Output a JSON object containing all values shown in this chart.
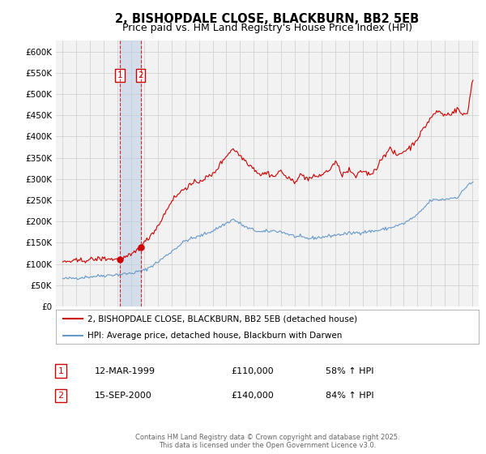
{
  "title": "2, BISHOPDALE CLOSE, BLACKBURN, BB2 5EB",
  "subtitle": "Price paid vs. HM Land Registry's House Price Index (HPI)",
  "title_fontsize": 10.5,
  "subtitle_fontsize": 9,
  "background_color": "#ffffff",
  "grid_color": "#cccccc",
  "plot_bg_color": "#f2f2f2",
  "legend1_label": "2, BISHOPDALE CLOSE, BLACKBURN, BB2 5EB (detached house)",
  "legend2_label": "HPI: Average price, detached house, Blackburn with Darwen",
  "line1_color": "#cc0000",
  "line2_color": "#6699cc",
  "marker_color": "#cc0000",
  "sale1_date_num": 1999.19,
  "sale2_date_num": 2000.71,
  "sale1_price": 110000,
  "sale2_price": 140000,
  "sale1_label": "1",
  "sale2_label": "2",
  "table_row1": [
    "1",
    "12-MAR-1999",
    "£110,000",
    "58% ↑ HPI"
  ],
  "table_row2": [
    "2",
    "15-SEP-2000",
    "£140,000",
    "84% ↑ HPI"
  ],
  "footer": "Contains HM Land Registry data © Crown copyright and database right 2025.\nThis data is licensed under the Open Government Licence v3.0.",
  "ylim": [
    0,
    625000
  ],
  "yticks": [
    0,
    50000,
    100000,
    150000,
    200000,
    250000,
    300000,
    350000,
    400000,
    450000,
    500000,
    550000,
    600000
  ],
  "ytick_labels": [
    "£0",
    "£50K",
    "£100K",
    "£150K",
    "£200K",
    "£250K",
    "£300K",
    "£350K",
    "£400K",
    "£450K",
    "£500K",
    "£550K",
    "£600K"
  ],
  "xlim_start": 1994.5,
  "xlim_end": 2025.5,
  "xticks": [
    1995,
    1996,
    1997,
    1998,
    1999,
    2000,
    2001,
    2002,
    2003,
    2004,
    2005,
    2006,
    2007,
    2008,
    2009,
    2010,
    2011,
    2012,
    2013,
    2014,
    2015,
    2016,
    2017,
    2018,
    2019,
    2020,
    2021,
    2022,
    2023,
    2024,
    2025
  ]
}
